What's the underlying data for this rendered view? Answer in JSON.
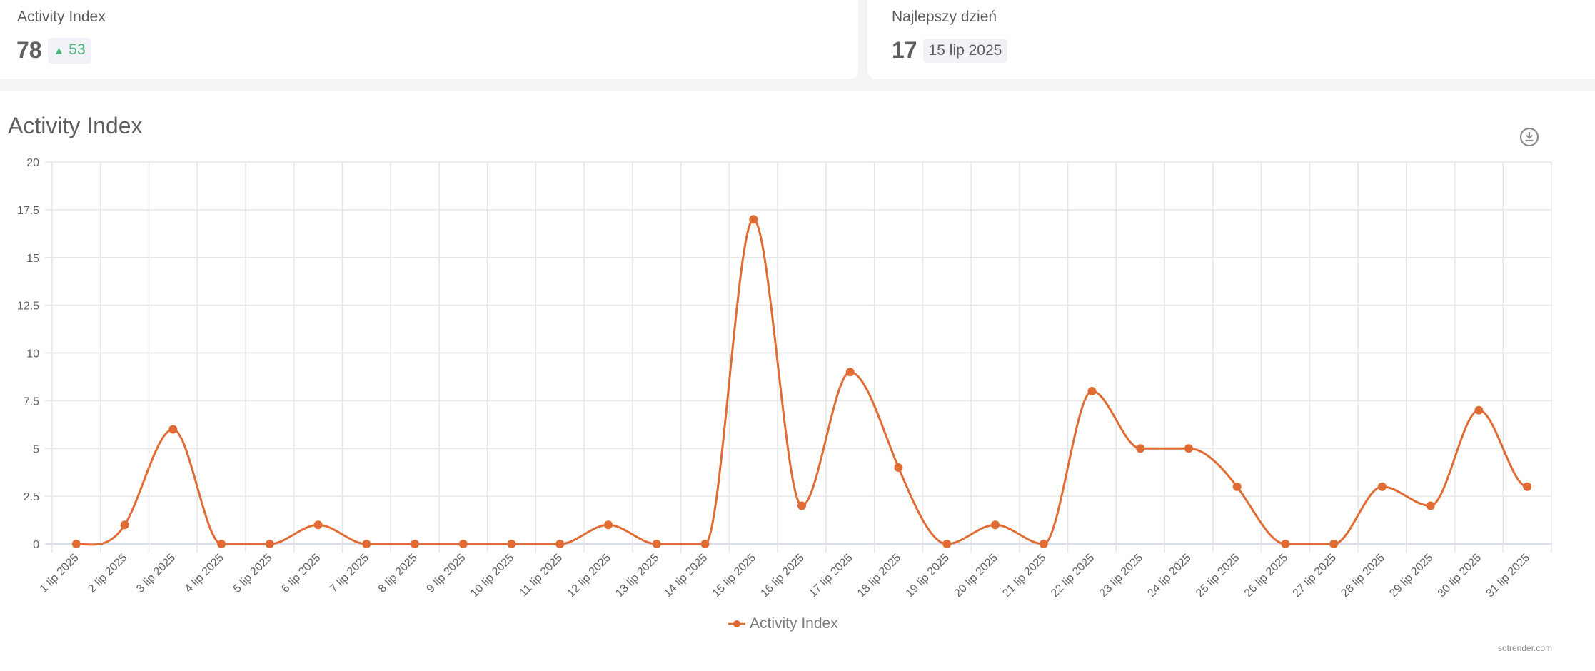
{
  "kpis": [
    {
      "label": "Activity Index",
      "value": "78",
      "badge": "53",
      "badge_icon": "triangle-up-icon",
      "badge_color": "#4fb37a"
    },
    {
      "label": "Najlepszy dzień",
      "value": "17",
      "badge": "15 lip 2025"
    }
  ],
  "chart": {
    "title": "Activity Index",
    "download_icon": "download-icon",
    "credit": "sotrender.com",
    "line_color": "#e06c34",
    "grid_color": "#e6e6e6"
  },
  "chart_data": {
    "type": "line",
    "title": "Activity Index",
    "xlabel": "",
    "ylabel": "",
    "ylim": [
      0,
      20
    ],
    "yticks": [
      "0",
      "2.5",
      "5",
      "7.5",
      "10",
      "12.5",
      "15",
      "17.5",
      "20"
    ],
    "grid": true,
    "legend_position": "bottom",
    "categories": [
      "1 lip 2025",
      "2 lip 2025",
      "3 lip 2025",
      "4 lip 2025",
      "5 lip 2025",
      "6 lip 2025",
      "7 lip 2025",
      "8 lip 2025",
      "9 lip 2025",
      "10 lip 2025",
      "11 lip 2025",
      "12 lip 2025",
      "13 lip 2025",
      "14 lip 2025",
      "15 lip 2025",
      "16 lip 2025",
      "17 lip 2025",
      "18 lip 2025",
      "19 lip 2025",
      "20 lip 2025",
      "21 lip 2025",
      "22 lip 2025",
      "23 lip 2025",
      "24 lip 2025",
      "25 lip 2025",
      "26 lip 2025",
      "27 lip 2025",
      "28 lip 2025",
      "29 lip 2025",
      "30 lip 2025",
      "31 lip 2025"
    ],
    "series": [
      {
        "name": "Activity Index",
        "values": [
          0,
          1,
          6,
          0,
          0,
          1,
          0,
          0,
          0,
          0,
          0,
          1,
          0,
          0,
          17,
          2,
          9,
          4,
          0,
          1,
          0,
          8,
          5,
          5,
          3,
          0,
          0,
          3,
          2,
          7,
          3
        ]
      }
    ]
  }
}
